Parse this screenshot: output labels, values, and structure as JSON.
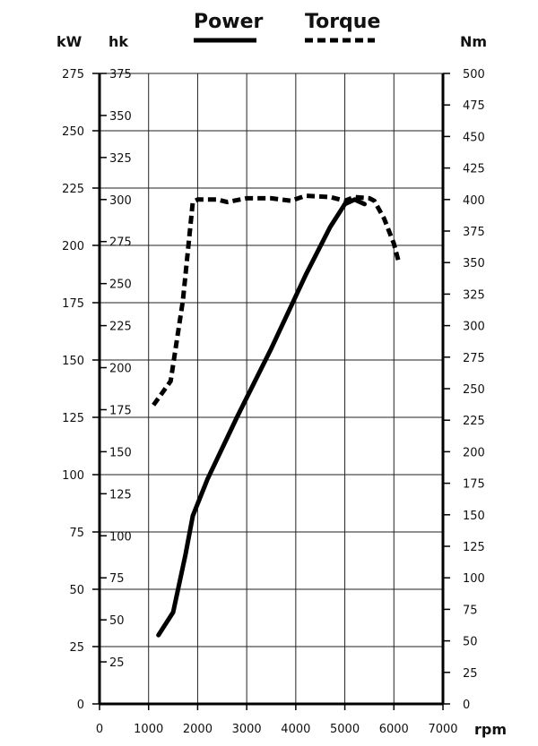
{
  "chart_data": {
    "type": "line",
    "x_unit": "rpm",
    "xlim": [
      0,
      7000
    ],
    "x_ticks": [
      0,
      1000,
      2000,
      3000,
      4000,
      5000,
      6000,
      7000
    ],
    "left_axis": {
      "unit": "kW",
      "ylim": [
        0,
        275
      ],
      "ticks": [
        0,
        25,
        50,
        75,
        100,
        125,
        150,
        175,
        200,
        225,
        250,
        275
      ]
    },
    "hk_axis": {
      "unit": "hk",
      "ylim": [
        0,
        375
      ],
      "ticks": [
        25,
        50,
        75,
        100,
        125,
        150,
        175,
        200,
        225,
        250,
        275,
        300,
        325,
        350,
        375
      ]
    },
    "right_axis": {
      "unit": "Nm",
      "ylim": [
        0,
        500
      ],
      "ticks": [
        0,
        25,
        50,
        75,
        100,
        125,
        150,
        175,
        200,
        225,
        250,
        275,
        300,
        325,
        350,
        375,
        400,
        425,
        450,
        475,
        500
      ]
    },
    "grid": true,
    "legend": "top",
    "series": [
      {
        "name": "Power",
        "axis": "kW",
        "style": "solid",
        "color": "#000000",
        "points": [
          [
            1200,
            30
          ],
          [
            1500,
            40
          ],
          [
            1750,
            65
          ],
          [
            1900,
            82
          ],
          [
            2200,
            98
          ],
          [
            2800,
            125
          ],
          [
            3500,
            155
          ],
          [
            4200,
            187
          ],
          [
            4700,
            208
          ],
          [
            5000,
            218
          ],
          [
            5200,
            220
          ],
          [
            5400,
            218
          ]
        ]
      },
      {
        "name": "Torque",
        "axis": "Nm",
        "style": "dashed",
        "color": "#000000",
        "points": [
          [
            1100,
            237
          ],
          [
            1450,
            256
          ],
          [
            1700,
            320
          ],
          [
            1900,
            398
          ],
          [
            2000,
            400
          ],
          [
            2400,
            400
          ],
          [
            2600,
            398
          ],
          [
            3000,
            401
          ],
          [
            3500,
            401
          ],
          [
            3900,
            399
          ],
          [
            4200,
            403
          ],
          [
            4700,
            402
          ],
          [
            5000,
            399
          ],
          [
            5200,
            402
          ],
          [
            5500,
            401
          ],
          [
            5600,
            399
          ],
          [
            5800,
            385
          ],
          [
            6000,
            365
          ],
          [
            6100,
            350
          ]
        ]
      }
    ]
  }
}
